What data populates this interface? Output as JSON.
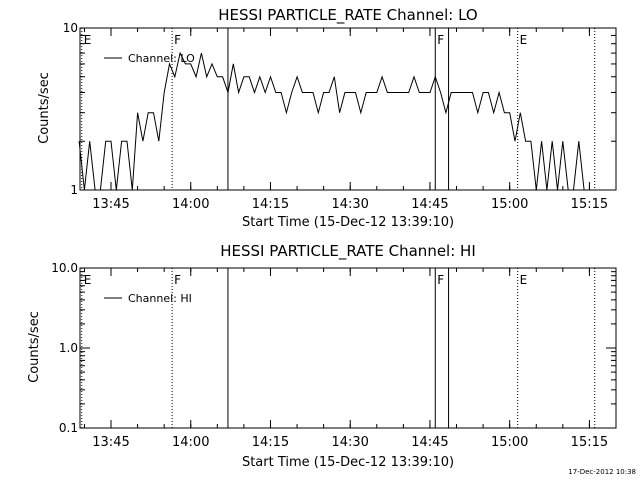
{
  "footer_timestamp": "17-Dec-2012 10:38",
  "chart_data": [
    {
      "type": "line",
      "title": "HESSI PARTICLE_RATE Channel: LO",
      "xlabel": "Start Time (15-Dec-12 13:39:10)",
      "ylabel": "Counts/sec",
      "y_scale": "log",
      "ylim": [
        1,
        10
      ],
      "y_ticks": [
        {
          "value": 1,
          "label": "1"
        },
        {
          "value": 10,
          "label": "10"
        }
      ],
      "xlim": [
        "13:39:10",
        "15:20:00"
      ],
      "x_ticks": [
        "13:45",
        "14:00",
        "14:15",
        "14:30",
        "14:45",
        "15:00",
        "15:15"
      ],
      "legend": {
        "position": "top-left",
        "entries": [
          "Channel: LO"
        ]
      },
      "series": [
        {
          "name": "Channel: LO",
          "color": "#000000",
          "x": [
            "13:39",
            "13:40",
            "13:41",
            "13:42",
            "13:43",
            "13:44",
            "13:45",
            "13:46",
            "13:47",
            "13:48",
            "13:49",
            "13:50",
            "13:51",
            "13:52",
            "13:53",
            "13:54",
            "13:55",
            "13:56",
            "13:57",
            "13:58",
            "13:59",
            "14:00",
            "14:01",
            "14:02",
            "14:03",
            "14:04",
            "14:05",
            "14:06",
            "14:07",
            "14:08",
            "14:09",
            "14:10",
            "14:11",
            "14:12",
            "14:13",
            "14:14",
            "14:15",
            "14:16",
            "14:17",
            "14:18",
            "14:19",
            "14:20",
            "14:21",
            "14:22",
            "14:23",
            "14:24",
            "14:25",
            "14:26",
            "14:27",
            "14:28",
            "14:29",
            "14:30",
            "14:31",
            "14:32",
            "14:33",
            "14:34",
            "14:35",
            "14:36",
            "14:37",
            "14:38",
            "14:39",
            "14:40",
            "14:41",
            "14:42",
            "14:43",
            "14:44",
            "14:45",
            "14:46",
            "14:47",
            "14:48",
            "14:49",
            "14:50",
            "14:51",
            "14:52",
            "14:53",
            "14:54",
            "14:55",
            "14:56",
            "14:57",
            "14:58",
            "14:59",
            "15:00",
            "15:01",
            "15:02",
            "15:03",
            "15:04",
            "15:05",
            "15:06",
            "15:07",
            "15:08",
            "15:09",
            "15:10",
            "15:11",
            "15:12",
            "15:13",
            "15:14"
          ],
          "values": [
            2,
            1,
            2,
            1,
            1,
            2,
            2,
            1,
            2,
            2,
            1,
            3,
            2,
            3,
            3,
            2,
            4,
            6,
            5,
            7,
            6,
            6,
            5,
            7,
            5,
            6,
            5,
            5,
            4,
            6,
            4,
            5,
            5,
            4,
            5,
            4,
            5,
            4,
            4,
            3,
            4,
            5,
            4,
            4,
            4,
            3,
            4,
            4,
            5,
            3,
            4,
            4,
            4,
            3,
            4,
            4,
            4,
            5,
            4,
            4,
            4,
            4,
            4,
            5,
            4,
            4,
            4,
            5,
            4,
            3,
            4,
            4,
            4,
            4,
            4,
            3,
            4,
            4,
            3,
            4,
            3,
            3,
            2,
            3,
            2,
            2,
            1,
            2,
            1,
            2,
            1,
            2,
            1,
            1,
            2,
            1
          ]
        }
      ],
      "markers": [
        {
          "time": "13:39:30",
          "label": "E",
          "style": "dotted"
        },
        {
          "time": "13:56:30",
          "label": "F",
          "style": "dotted"
        },
        {
          "time": "14:07:00",
          "label": "",
          "style": "solid"
        },
        {
          "time": "14:46:00",
          "label": "F",
          "style": "solid"
        },
        {
          "time": "14:48:30",
          "label": "",
          "style": "solid"
        },
        {
          "time": "15:01:30",
          "label": "E",
          "style": "dotted"
        },
        {
          "time": "15:16:00",
          "label": "",
          "style": "dotted"
        }
      ]
    },
    {
      "type": "line",
      "title": "HESSI PARTICLE_RATE Channel: HI",
      "xlabel": "Start Time (15-Dec-12 13:39:10)",
      "ylabel": "Counts/sec",
      "y_scale": "log",
      "ylim": [
        0.1,
        10
      ],
      "y_ticks": [
        {
          "value": 0.1,
          "label": "0.1"
        },
        {
          "value": 1,
          "label": "1.0"
        },
        {
          "value": 10,
          "label": "10.0"
        }
      ],
      "xlim": [
        "13:39:10",
        "15:20:00"
      ],
      "x_ticks": [
        "13:45",
        "14:00",
        "14:15",
        "14:30",
        "14:45",
        "15:00",
        "15:15"
      ],
      "legend": {
        "position": "top-left",
        "entries": [
          "Channel: HI"
        ]
      },
      "series": [
        {
          "name": "Channel: HI",
          "color": "#000000",
          "x": [],
          "values": []
        }
      ],
      "markers": [
        {
          "time": "13:39:30",
          "label": "E",
          "style": "dotted"
        },
        {
          "time": "13:56:30",
          "label": "F",
          "style": "dotted"
        },
        {
          "time": "14:07:00",
          "label": "",
          "style": "solid"
        },
        {
          "time": "14:46:00",
          "label": "F",
          "style": "solid"
        },
        {
          "time": "14:48:30",
          "label": "",
          "style": "solid"
        },
        {
          "time": "15:01:30",
          "label": "E",
          "style": "dotted"
        },
        {
          "time": "15:16:00",
          "label": "",
          "style": "dotted"
        }
      ]
    }
  ]
}
